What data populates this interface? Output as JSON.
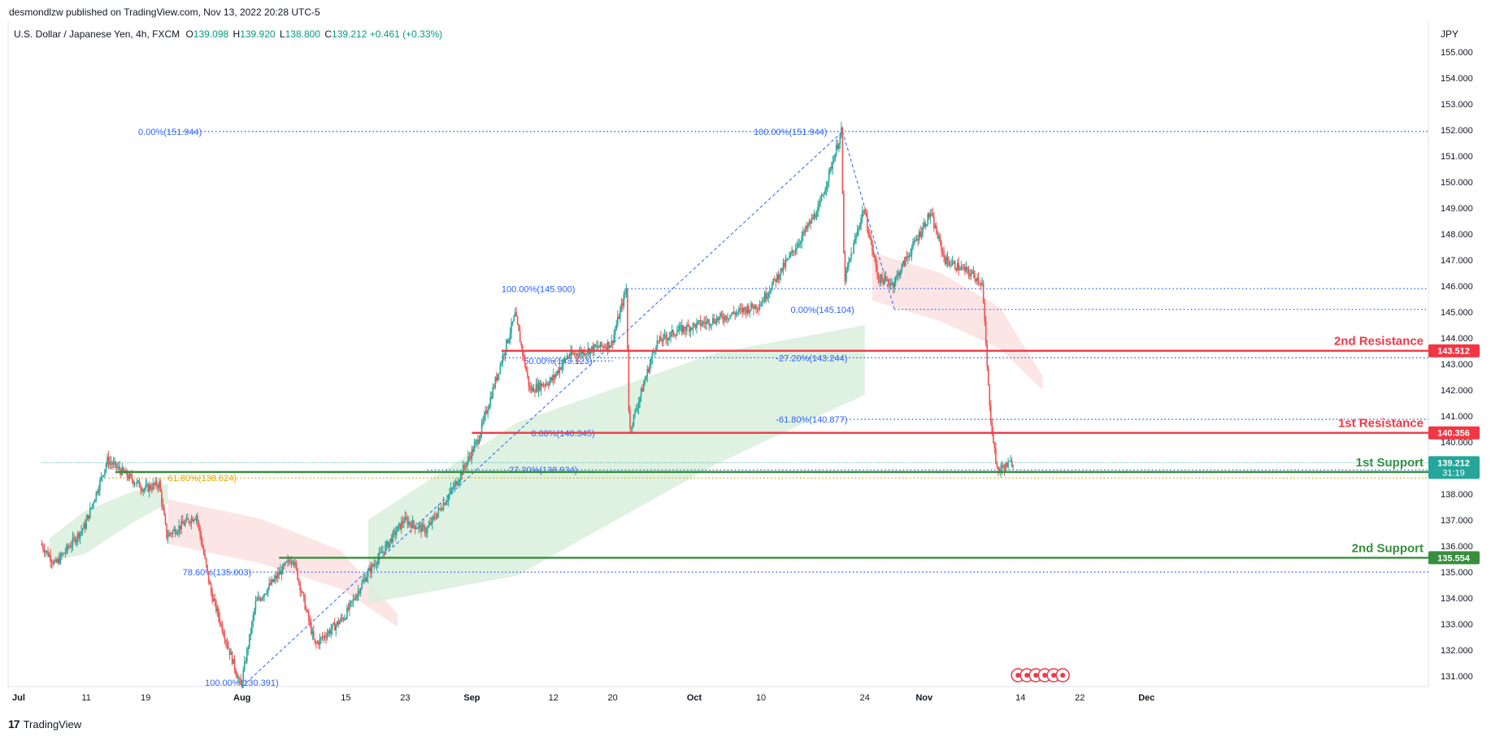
{
  "header": {
    "published": "desmondlzw published on TradingView.com, Nov 13, 2022 20:28 UTC-5",
    "symbol": "U.S. Dollar / Japanese Yen, 4h, FXCM",
    "open_label": "O",
    "open": "139.098",
    "high_label": "H",
    "high": "139.920",
    "low_label": "L",
    "low": "138.800",
    "close_label": "C",
    "close": "139.212",
    "change": "+0.461 (+0.33%)"
  },
  "currency": "JPY",
  "branding": {
    "logo_icon": "tradingview-logo-icon",
    "text": "TradingView"
  },
  "colors": {
    "up": "#26a69a",
    "down": "#ef5350",
    "resistance": "#f23645",
    "support": "#388e3c",
    "fib": "#2962ff",
    "fib_gold": "#e6a700",
    "cloud_bull": "#d9efdc",
    "cloud_bear": "#fbe0e1"
  },
  "chart_data": {
    "type": "candlestick",
    "instrument": "USDJPY",
    "timeframe": "4h",
    "ylim": [
      130.6,
      155.5
    ],
    "y_ticks": [
      "131.000",
      "132.000",
      "133.000",
      "134.000",
      "135.000",
      "136.000",
      "137.000",
      "138.000",
      "139.000",
      "140.000",
      "141.000",
      "142.000",
      "143.000",
      "144.000",
      "145.000",
      "146.000",
      "147.000",
      "148.000",
      "149.000",
      "150.000",
      "151.000",
      "152.000",
      "153.000",
      "154.000",
      "155.000"
    ],
    "x_ticks": [
      "Jul",
      "11",
      "19",
      "Aug",
      "15",
      "23",
      "Sep",
      "12",
      "20",
      "Oct",
      "10",
      "24",
      "Nov",
      "14",
      "22",
      "Dec"
    ],
    "price_path": [
      [
        "Jul 5",
        136.1
      ],
      [
        "Jul 7",
        135.3
      ],
      [
        "Jul 11",
        136.8
      ],
      [
        "Jul 14",
        139.3
      ],
      [
        "Jul 19",
        138.2
      ],
      [
        "Jul 21",
        138.4
      ],
      [
        "Jul 22",
        136.4
      ],
      [
        "Jul 26",
        137.2
      ],
      [
        "Jul 28",
        134.2
      ],
      [
        "Aug 1",
        130.6
      ],
      [
        "Aug 3",
        133.8
      ],
      [
        "Aug 8",
        135.6
      ],
      [
        "Aug 11",
        132.2
      ],
      [
        "Aug 15",
        133.3
      ],
      [
        "Aug 18",
        134.9
      ],
      [
        "Aug 23",
        137.0
      ],
      [
        "Aug 26",
        136.6
      ],
      [
        "Aug 30",
        138.4
      ],
      [
        "Sep 2",
        140.1
      ],
      [
        "Sep 7",
        144.9
      ],
      [
        "Sep 9",
        142.0
      ],
      [
        "Sep 12",
        142.4
      ],
      [
        "Sep 14",
        143.3
      ],
      [
        "Sep 20",
        143.8
      ],
      [
        "Sep 22",
        145.9
      ],
      [
        "Sep 22b",
        140.4
      ],
      [
        "Sep 26",
        143.8
      ],
      [
        "Sep 29",
        144.3
      ],
      [
        "Oct 5",
        144.8
      ],
      [
        "Oct 10",
        145.3
      ],
      [
        "Oct 14",
        147.1
      ],
      [
        "Oct 18",
        149.0
      ],
      [
        "Oct 21",
        151.94
      ],
      [
        "Oct 21b",
        146.2
      ],
      [
        "Oct 24",
        149.0
      ],
      [
        "Oct 26",
        146.3
      ],
      [
        "Oct 28",
        146.1
      ],
      [
        "Nov 2",
        148.8
      ],
      [
        "Nov 4",
        147.0
      ],
      [
        "Nov 8",
        146.4
      ],
      [
        "Nov 9",
        146.1
      ],
      [
        "Nov 10",
        141.3
      ],
      [
        "Nov 11",
        138.9
      ],
      [
        "Nov 13",
        139.212
      ]
    ],
    "cloud_segments": [
      {
        "from": "Jul 6",
        "to": "Jul 22",
        "top": 138.4,
        "bottom": 135.4,
        "type": "bullish"
      },
      {
        "from": "Jul 22",
        "to": "Aug 22",
        "top": 137.8,
        "bottom": 132.9,
        "type": "bearish"
      },
      {
        "from": "Aug 18",
        "to": "Oct 24",
        "top": 144.5,
        "bottom": 133.8,
        "type": "bullish"
      },
      {
        "from": "Oct 25",
        "to": "Nov 17",
        "top": 147.3,
        "bottom": 142.0,
        "type": "bearish"
      }
    ],
    "current_price": "139.212",
    "countdown": "31:19",
    "levels": [
      {
        "name": "2nd Resistance",
        "price": 143.512,
        "price_label": "143.512",
        "type": "resistance",
        "from": "Sep 5"
      },
      {
        "name": "1st Resistance",
        "price": 140.356,
        "price_label": "140.356",
        "type": "resistance",
        "from": "Sep 1"
      },
      {
        "name": "1st Support",
        "price": 138.852,
        "price_label": "138.852",
        "type": "support",
        "from": "Jul 15"
      },
      {
        "name": "2nd Support",
        "price": 135.554,
        "price_label": "135.554",
        "type": "support",
        "from": "Aug 6"
      }
    ],
    "fib_labels": [
      {
        "text": "0.00%(151.944)",
        "price": 151.944,
        "color": "blue"
      },
      {
        "text": "100.00%(151.944)",
        "price": 151.944,
        "color": "blue"
      },
      {
        "text": "100.00%(145.900)",
        "price": 145.9,
        "color": "blue"
      },
      {
        "text": "0.00%(145.104)",
        "price": 145.104,
        "color": "blue"
      },
      {
        "text": "50.00%(143.123)",
        "price": 143.123,
        "color": "blue"
      },
      {
        "text": "-27.20%(143.244)",
        "price": 143.244,
        "color": "blue"
      },
      {
        "text": "-61.80%(140.877)",
        "price": 140.877,
        "color": "blue"
      },
      {
        "text": "0.00%(140.345)",
        "price": 140.345,
        "color": "blue"
      },
      {
        "text": "27.20%(138.934)",
        "price": 138.934,
        "color": "blue"
      },
      {
        "text": "61.80%(138.624)",
        "price": 138.624,
        "color": "gold"
      },
      {
        "text": "78.60%(135.003)",
        "price": 135.003,
        "color": "blue"
      },
      {
        "text": "100.00%(130.391)",
        "price": 130.391,
        "color": "blue"
      }
    ],
    "grid": false
  }
}
